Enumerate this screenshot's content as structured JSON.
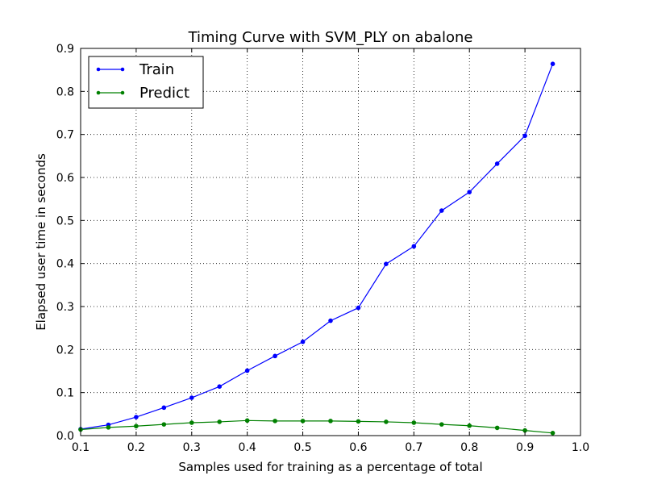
{
  "chart_data": {
    "type": "line",
    "title": "Timing Curve with SVM_PLY on abalone",
    "xlabel": "Samples used for training as a percentage of total",
    "ylabel": "Elapsed user time in seconds",
    "xlim": [
      0.1,
      1.0
    ],
    "ylim": [
      0.0,
      0.9
    ],
    "xticks": [
      "0.1",
      "0.2",
      "0.3",
      "0.4",
      "0.5",
      "0.6",
      "0.7",
      "0.8",
      "0.9",
      "1.0"
    ],
    "yticks": [
      "0.0",
      "0.1",
      "0.2",
      "0.3",
      "0.4",
      "0.5",
      "0.6",
      "0.7",
      "0.8",
      "0.9"
    ],
    "grid": true,
    "legend_position": "top-left",
    "x": [
      0.1,
      0.15,
      0.2,
      0.25,
      0.3,
      0.35,
      0.4,
      0.45,
      0.5,
      0.55,
      0.6,
      0.65,
      0.7,
      0.75,
      0.8,
      0.85,
      0.9,
      0.95
    ],
    "series": [
      {
        "name": "Train",
        "color": "#0000ff",
        "values": [
          0.015,
          0.025,
          0.043,
          0.065,
          0.088,
          0.114,
          0.151,
          0.185,
          0.218,
          0.267,
          0.297,
          0.399,
          0.44,
          0.523,
          0.566,
          0.632,
          0.697,
          0.864
        ]
      },
      {
        "name": "Predict",
        "color": "#008000",
        "values": [
          0.014,
          0.019,
          0.022,
          0.026,
          0.03,
          0.032,
          0.035,
          0.034,
          0.034,
          0.034,
          0.033,
          0.032,
          0.03,
          0.026,
          0.023,
          0.018,
          0.012,
          0.006
        ]
      }
    ]
  }
}
